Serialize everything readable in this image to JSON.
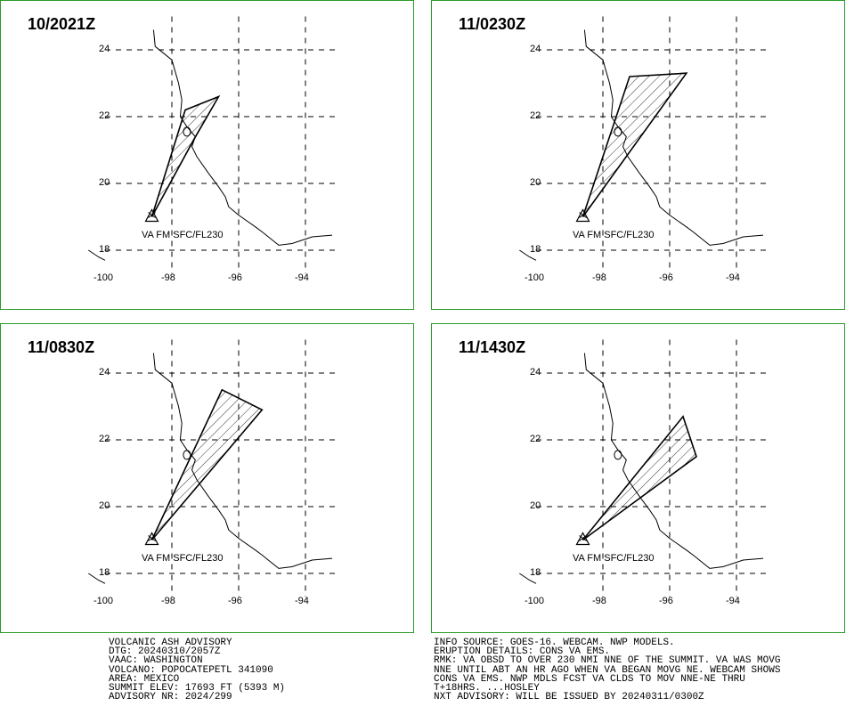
{
  "panels": [
    {
      "time": "10/2021Z",
      "va_label": "VA FM SFC/FL230",
      "ash_polygon": [
        [
          -98.6,
          19.0
        ],
        [
          -97.6,
          22.2
        ],
        [
          -96.6,
          22.6
        ],
        [
          -97.35,
          21.3
        ],
        [
          -98.6,
          19.0
        ]
      ]
    },
    {
      "time": "11/0230Z",
      "va_label": "VA FM SFC/FL230",
      "ash_polygon": [
        [
          -98.6,
          19.0
        ],
        [
          -97.2,
          23.2
        ],
        [
          -95.5,
          23.3
        ],
        [
          -98.6,
          19.0
        ]
      ]
    },
    {
      "time": "11/0830Z",
      "va_label": "VA FM SFC/FL230",
      "ash_polygon": [
        [
          -98.6,
          19.0
        ],
        [
          -96.5,
          23.5
        ],
        [
          -95.3,
          22.9
        ],
        [
          -98.6,
          19.0
        ]
      ]
    },
    {
      "time": "11/1430Z",
      "va_label": "VA FM SFC/FL230",
      "ash_polygon": [
        [
          -98.6,
          19.0
        ],
        [
          -95.6,
          22.7
        ],
        [
          -95.2,
          21.5
        ],
        [
          -98.6,
          19.0
        ]
      ]
    }
  ],
  "axes": {
    "lat_ticks": [
      "24",
      "22",
      "20",
      "18"
    ],
    "lon_ticks": [
      "-100",
      "-98",
      "-96",
      "-94"
    ]
  },
  "volcano": {
    "lon": -98.6,
    "lat": 19.0
  },
  "advisory_left": "VOLCANIC ASH ADVISORY\nDTG: 20240310/2057Z\nVAAC: WASHINGTON\nVOLCANO: POPOCATEPETL 341090\nAREA: MEXICO\nSUMMIT ELEV: 17693 FT (5393 M)\nADVISORY NR: 2024/299",
  "advisory_right": "INFO SOURCE: GOES-16. WEBCAM. NWP MODELS.\nERUPTION DETAILS: CONS VA EMS.\nRMK: VA OBSD TO OVER 230 NMI NNE OF THE SUMMIT. VA WAS MOVG\nNNE UNTIL ABT AN HR AGO WHEN VA BEGAN MOVG NE. WEBCAM SHOWS\nCONS VA EMS. NWP MDLS FCST VA CLDS TO MOV NNE-NE THRU\nT+18HRS. ...HOSLEY\nNXT ADVISORY: WILL BE ISSUED BY 20240311/0300Z",
  "colors": {
    "border": "#2a9a2a",
    "ink": "#000000"
  }
}
